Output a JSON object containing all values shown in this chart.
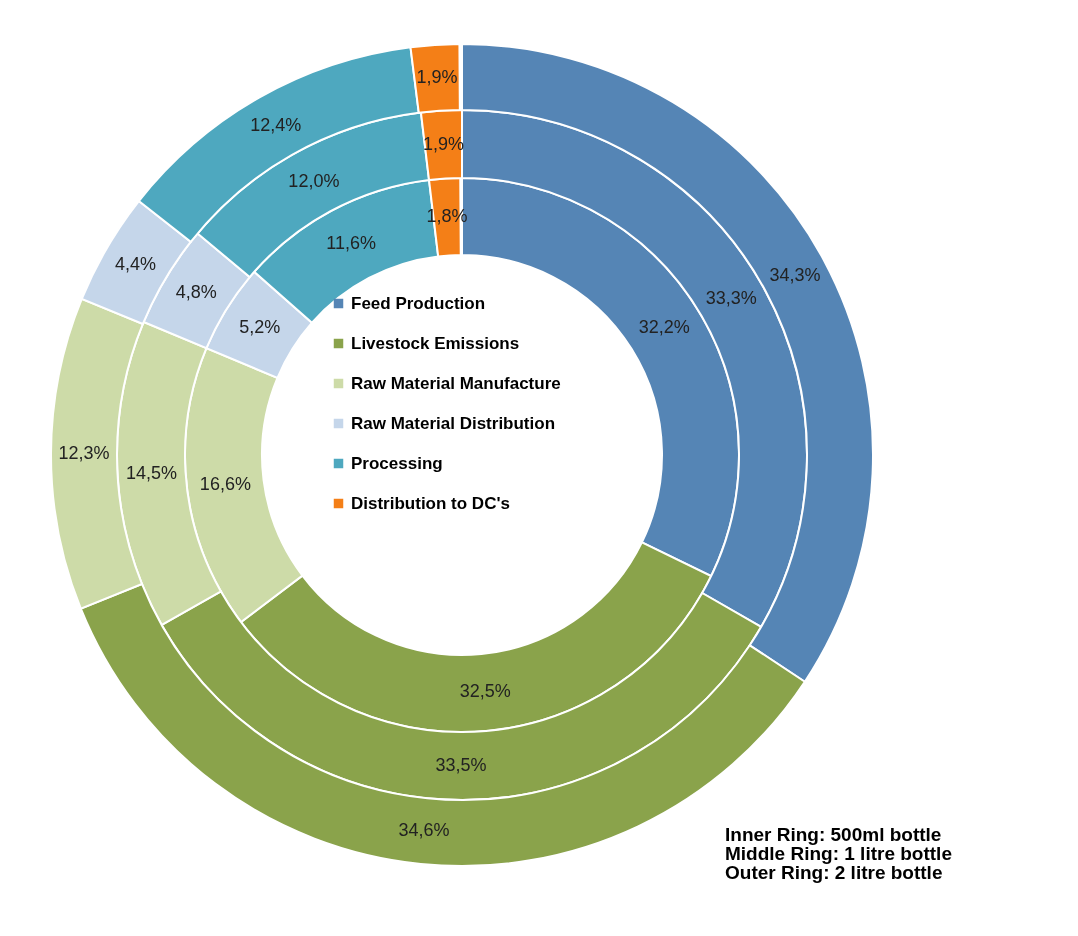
{
  "chart_data": {
    "type": "donut",
    "categories": [
      "Feed Production",
      "Livestock Emissions",
      "Raw Material Manufacture",
      "Raw Material Distribution",
      "Processing",
      "Distribution to DC's"
    ],
    "colors": [
      "#5585b5",
      "#8aa34b",
      "#cddba8",
      "#c5d6ea",
      "#4ea8bf",
      "#f47f17"
    ],
    "series": [
      {
        "values": [
          32.2,
          32.5,
          16.6,
          5.2,
          11.6,
          1.8
        ],
        "value_labels": [
          "32,2%",
          "32,5%",
          "16,6%",
          "5,2%",
          "11,6%",
          "1,8%"
        ]
      },
      {
        "values": [
          33.3,
          33.5,
          14.5,
          4.8,
          12.0,
          1.9
        ],
        "value_labels": [
          "33,3%",
          "33,5%",
          "14,5%",
          "4,8%",
          "12,0%",
          "1,9%"
        ]
      },
      {
        "values": [
          34.3,
          34.6,
          12.3,
          4.4,
          12.4,
          1.9
        ],
        "value_labels": [
          "34,3%",
          "34,6%",
          "12,3%",
          "4,4%",
          "12,4%",
          "1,9%"
        ]
      }
    ],
    "legend": "center",
    "annotations": [
      "Inner Ring: 500ml bottle",
      "Middle Ring: 1 litre bottle",
      "Outer Ring: 2 litre bottle"
    ]
  }
}
